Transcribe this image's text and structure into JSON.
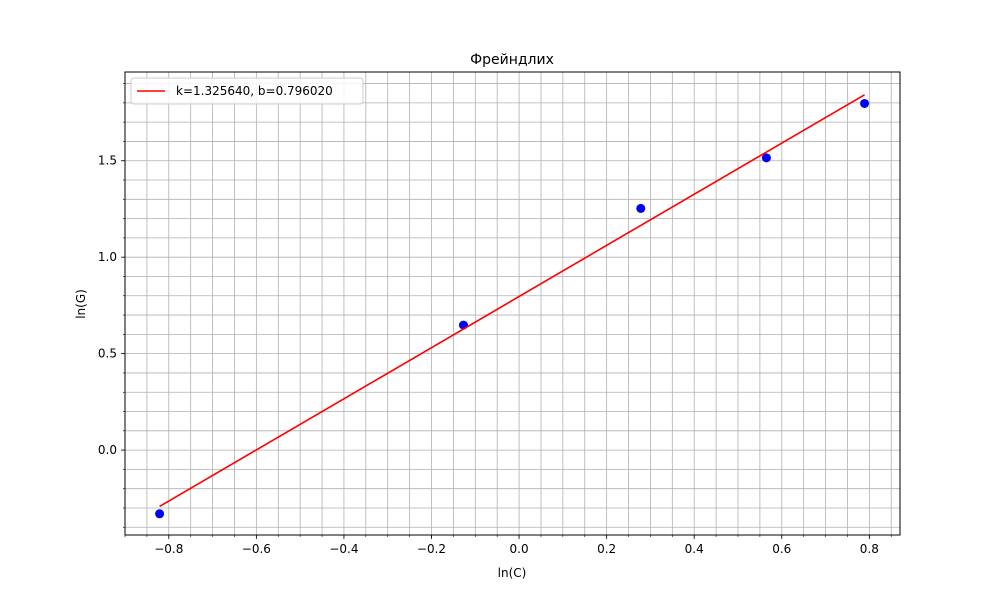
{
  "chart_data": {
    "type": "scatter",
    "title": "Фрейндлих",
    "xlabel": "ln(C)",
    "ylabel": "ln(G)",
    "xlim": [
      -0.9,
      0.87
    ],
    "ylim": [
      -0.44,
      1.96
    ],
    "x_ticks": [
      -0.8,
      -0.6,
      -0.4,
      -0.2,
      0.0,
      0.2,
      0.4,
      0.6,
      0.8
    ],
    "x_tick_labels": [
      "−0.8",
      "−0.6",
      "−0.4",
      "−0.2",
      "0.0",
      "0.2",
      "0.4",
      "0.6",
      "0.8"
    ],
    "y_ticks": [
      0.0,
      0.5,
      1.0,
      1.5
    ],
    "y_tick_labels": [
      "0.0",
      "0.5",
      "1.0",
      "1.5"
    ],
    "x_minor_step": 0.05,
    "y_minor_step": 0.1,
    "grid": "major and minor",
    "legend_position": "top-left",
    "series": [
      {
        "kind": "points",
        "color": "#0000ff",
        "x": [
          -0.821,
          -0.127,
          0.278,
          0.565,
          0.789
        ],
        "y": [
          -0.33,
          0.648,
          1.253,
          1.515,
          1.797
        ]
      },
      {
        "kind": "line",
        "name": "k=1.325640, b=0.796020",
        "color": "#ff0000",
        "x": [
          -0.821,
          0.789
        ],
        "y": [
          -0.292,
          1.842
        ]
      }
    ]
  }
}
